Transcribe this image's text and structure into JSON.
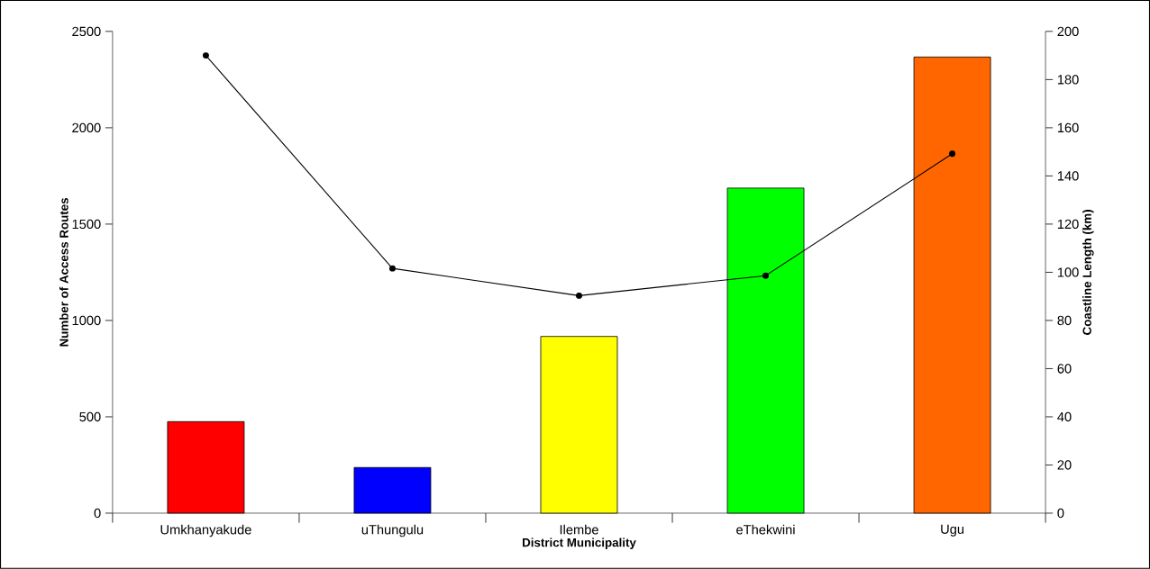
{
  "chart_data": {
    "type": "bar",
    "xlabel": "District Municipality",
    "ylabel": "Number of Access Routes",
    "y2label": "Coastline Length (km)",
    "categories": [
      "Umkhanyakude",
      "uThungulu",
      "Ilembe",
      "eThekwini",
      "Ugu"
    ],
    "series": [
      {
        "colors": [
          "#ff0000",
          "#0000ff",
          "#ffff00",
          "#00ff00",
          "#ff6600"
        ],
        "values": [
          475,
          237,
          917,
          1687,
          2367
        ]
      },
      {
        "type": "line",
        "axis": "y2",
        "color": "#000000",
        "marker": "circle",
        "line_style": "solid",
        "values": [
          190,
          101.6,
          90.3,
          98.6,
          149.2
        ]
      }
    ],
    "ylim": [
      0,
      2500
    ],
    "yticks": [
      0,
      500,
      1000,
      1500,
      2000,
      2500
    ],
    "y2lim": [
      0,
      200
    ],
    "y2ticks": [
      0,
      20,
      40,
      60,
      80,
      100,
      120,
      140,
      160,
      180,
      200
    ]
  }
}
